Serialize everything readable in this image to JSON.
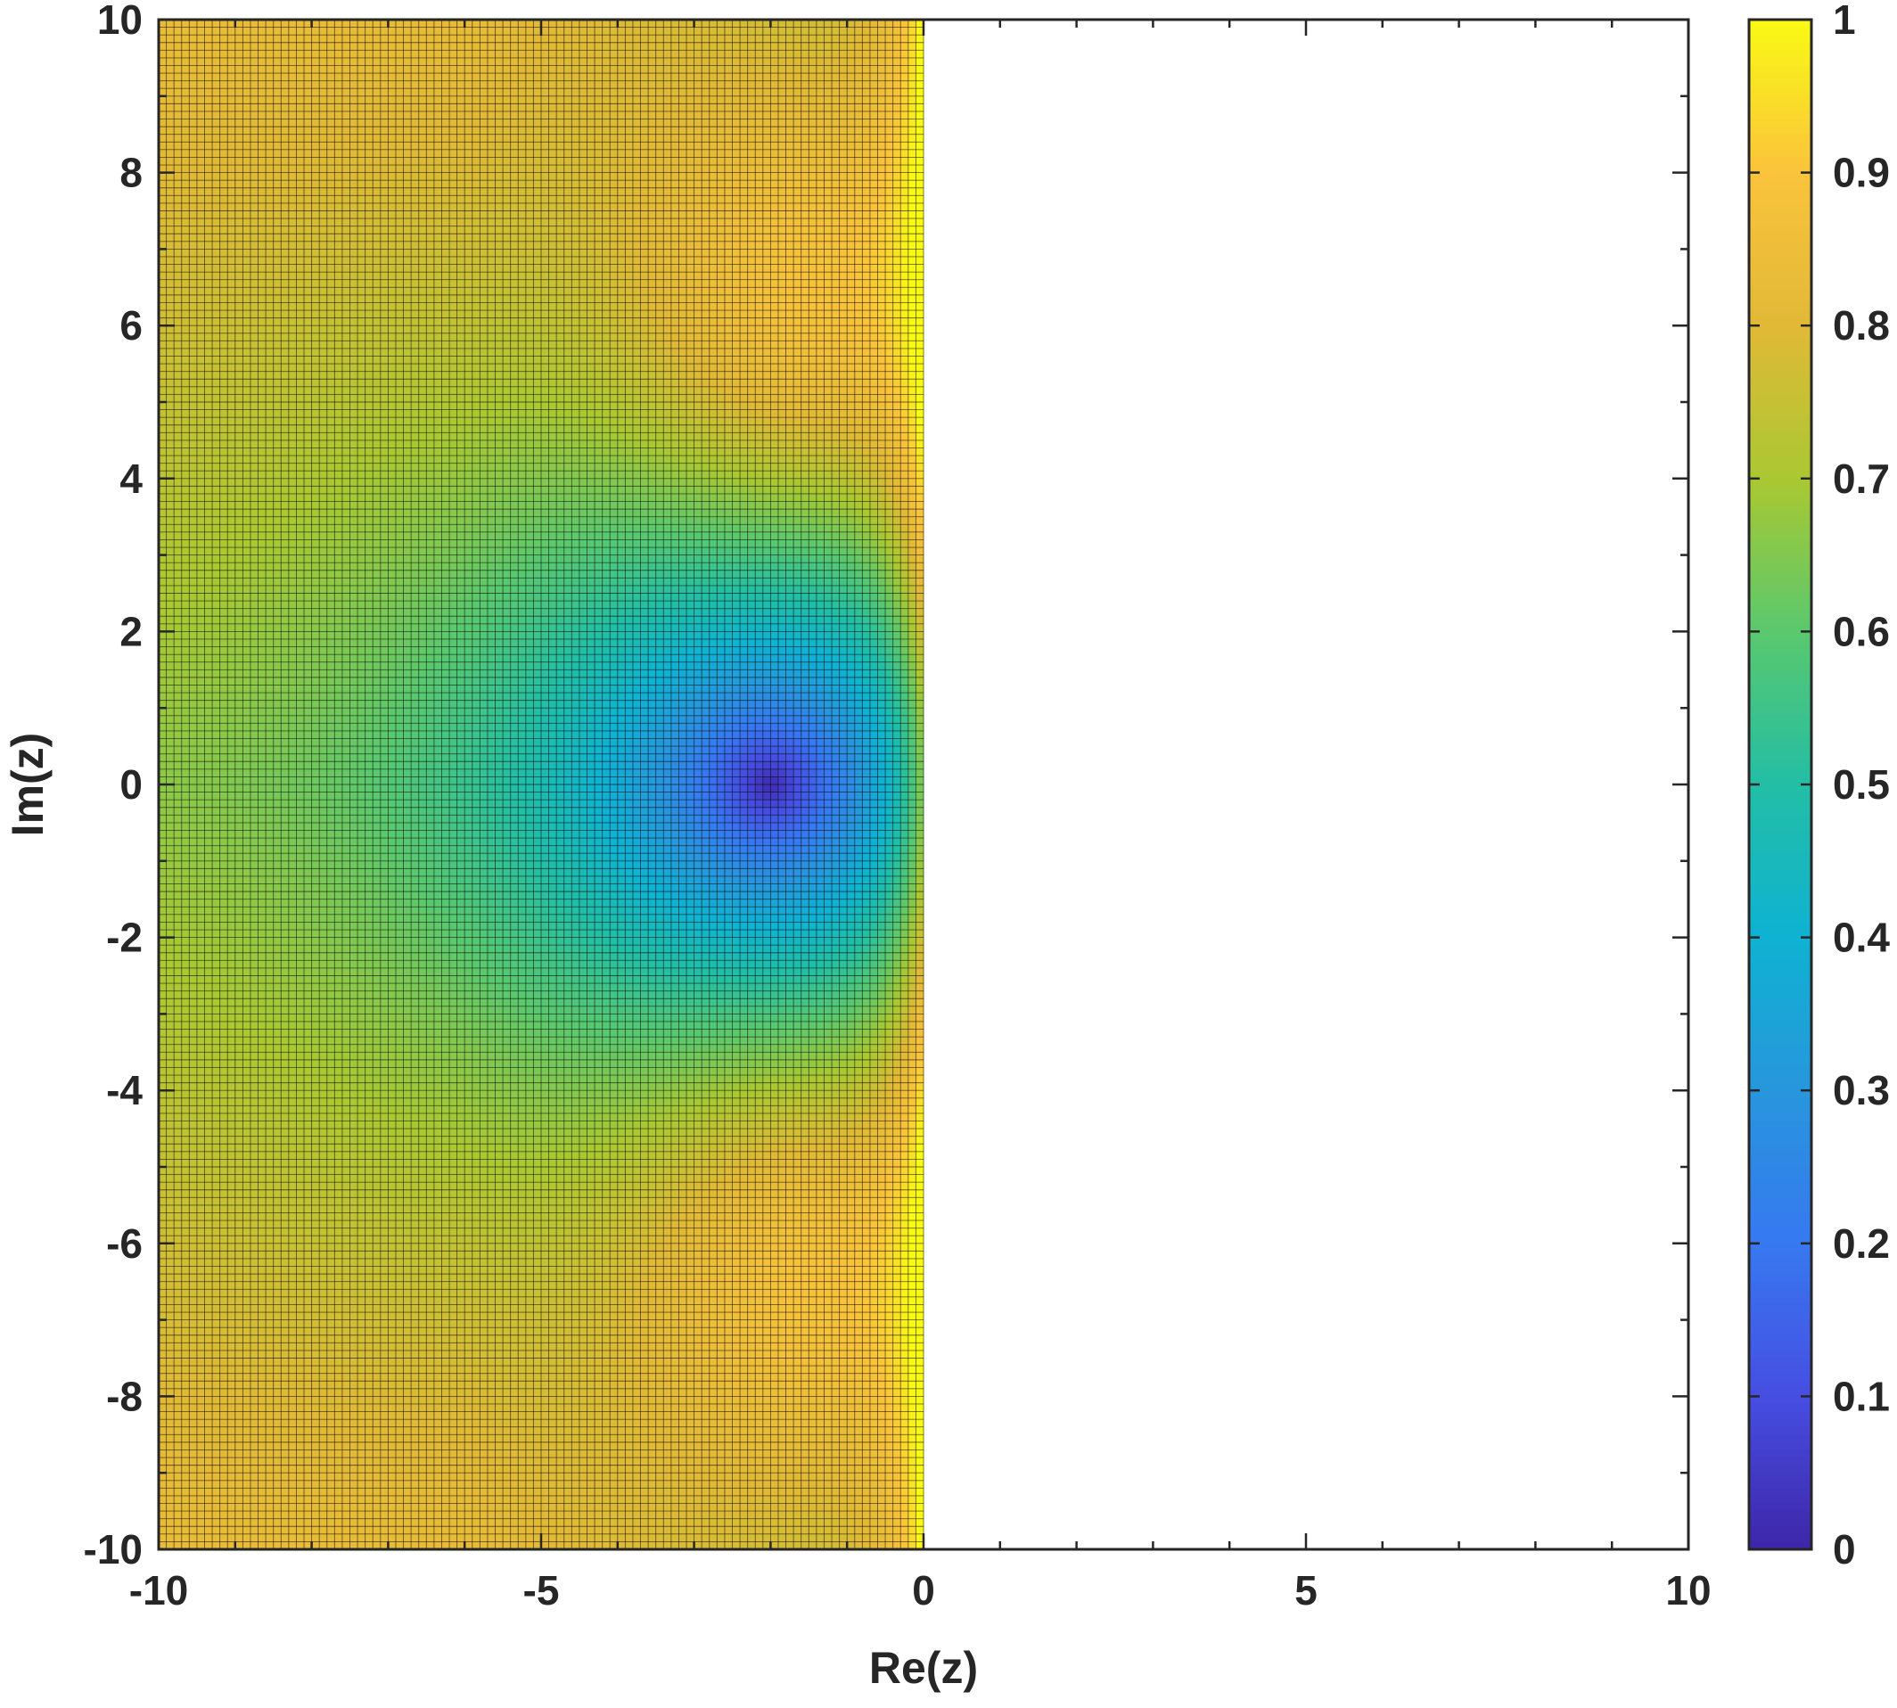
{
  "chart_data": {
    "type": "heatmap",
    "xlabel": "Re(z)",
    "ylabel": "Im(z)",
    "xlim": [
      -10,
      10
    ],
    "ylim": [
      -10,
      10
    ],
    "x_ticks": [
      "-10",
      "-5",
      "0",
      "5",
      "10"
    ],
    "y_ticks": [
      "10",
      "8",
      "6",
      "4",
      "2",
      "0",
      "-2",
      "-4",
      "-6",
      "-8",
      "-10"
    ],
    "colorbar": {
      "colormap": "parula",
      "range": [
        0,
        1
      ],
      "ticks": [
        "1",
        "0.9",
        "0.8",
        "0.7",
        "0.6",
        "0.5",
        "0.4",
        "0.3",
        "0.2",
        "0.1",
        "0"
      ]
    },
    "mesh_grid_lines": true,
    "filled_region": {
      "re_min": -10,
      "re_max": 0,
      "im_min": -10,
      "im_max": 10
    },
    "surface": {
      "description_of_values": "minimum 0 at z = -2+0i, rising to about 0.85 at the top and bottom left, about 0.9 near the boundary Re(z)=0 at |Im(z)| between 4 and 8, and 1 along Re(z)=0",
      "sample_points": [
        {
          "re": -2,
          "im": 0,
          "value": 0.0
        },
        {
          "re": -4,
          "im": 0,
          "value": 0.33
        },
        {
          "re": -6,
          "im": 0,
          "value": 0.55
        },
        {
          "re": -10,
          "im": 0,
          "value": 0.68
        },
        {
          "re": -2,
          "im": 4,
          "value": 0.68
        },
        {
          "re": -1,
          "im": 6,
          "value": 0.87
        },
        {
          "re": -10,
          "im": 10,
          "value": 0.85
        },
        {
          "re": -5,
          "im": 10,
          "value": 0.85
        },
        {
          "re": 0,
          "im": 0,
          "value": 1.0
        }
      ]
    }
  }
}
